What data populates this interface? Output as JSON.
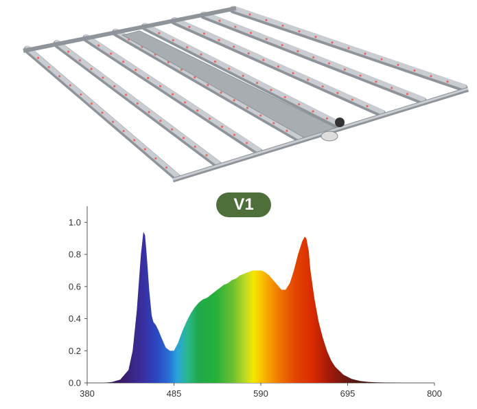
{
  "badge": {
    "label": "V1",
    "color": "#4e6e3a"
  },
  "colors": {
    "frame": "#c9cdd1",
    "frame_dark": "#8e9499",
    "led": "#e86a6a",
    "driver": "#a8adb2"
  },
  "chart_data": {
    "type": "area",
    "title": "",
    "xlabel": "",
    "ylabel": "",
    "xlim": [
      380,
      800
    ],
    "ylim": [
      0,
      1.1
    ],
    "x_ticks": [
      380,
      485,
      590,
      695,
      800
    ],
    "y_ticks": [
      0.0,
      0.2,
      0.4,
      0.6,
      0.8,
      1.0
    ],
    "x_tick_labels": [
      "380",
      "485",
      "590",
      "695",
      "800"
    ],
    "y_tick_labels": [
      "0.0",
      "0.2",
      "0.4",
      "0.6",
      "0.8",
      "1.0"
    ],
    "grid": false,
    "legend": "none",
    "series": [
      {
        "x": [
          390,
          400,
          410,
          420,
          430,
          435,
          440,
          445,
          448,
          450,
          452,
          455,
          458,
          460,
          463,
          466,
          470,
          475,
          480,
          485,
          490,
          495,
          500,
          505,
          510,
          515,
          520,
          525,
          530,
          535,
          540,
          545,
          550,
          555,
          560,
          565,
          570,
          575,
          580,
          585,
          590,
          595,
          600,
          605,
          610,
          615,
          620,
          625,
          630,
          635,
          640,
          643,
          645,
          648,
          650,
          655,
          660,
          665,
          670,
          675,
          680,
          690,
          700,
          710,
          720,
          730,
          740,
          750,
          760,
          770
        ],
        "y": [
          0.0,
          0.0,
          0.005,
          0.02,
          0.08,
          0.2,
          0.45,
          0.8,
          0.94,
          0.92,
          0.8,
          0.58,
          0.42,
          0.38,
          0.36,
          0.33,
          0.28,
          0.22,
          0.2,
          0.2,
          0.25,
          0.32,
          0.38,
          0.43,
          0.47,
          0.5,
          0.52,
          0.53,
          0.55,
          0.57,
          0.59,
          0.61,
          0.62,
          0.64,
          0.65,
          0.67,
          0.68,
          0.69,
          0.7,
          0.7,
          0.7,
          0.69,
          0.67,
          0.64,
          0.61,
          0.58,
          0.58,
          0.62,
          0.7,
          0.8,
          0.88,
          0.91,
          0.9,
          0.82,
          0.7,
          0.52,
          0.38,
          0.28,
          0.2,
          0.14,
          0.1,
          0.05,
          0.025,
          0.012,
          0.006,
          0.003,
          0.002,
          0.001,
          0.0,
          0.0
        ]
      }
    ]
  }
}
